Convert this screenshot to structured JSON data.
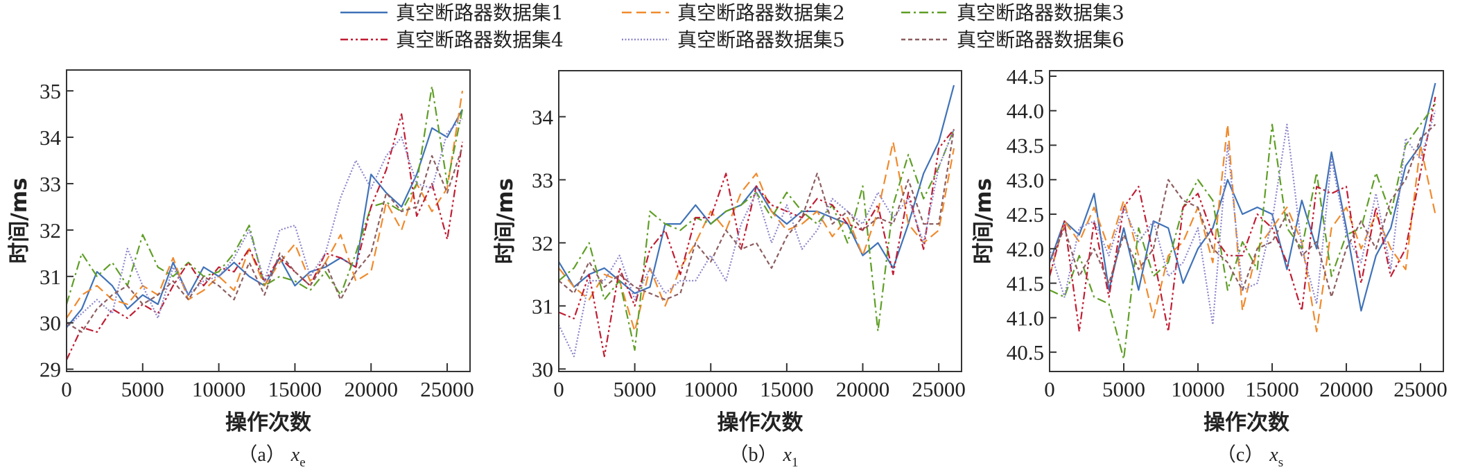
{
  "legend": {
    "placement": "top",
    "entries": [
      "真空断路器数据集1",
      "真空断路器数据集2",
      "真空断路器数据集3",
      "真空断路器数据集4",
      "真空断路器数据集5",
      "真空断路器数据集6"
    ],
    "colors": [
      "#3f72b8",
      "#f08a2c",
      "#5f9e26",
      "#c01d33",
      "#8b84c8",
      "#8c5e60"
    ],
    "line_styles": [
      "solid",
      "dashed",
      "dash-dot",
      "dash-dot-dot",
      "dotted",
      "short-dashed"
    ]
  },
  "chart_data": [
    {
      "type": "line",
      "caption": {
        "label": "（a）",
        "var": "x",
        "sub": "e"
      },
      "xlabel": "操作次数",
      "ylabel": "时间/ms",
      "xlim": [
        0,
        26500
      ],
      "ylim": [
        28.95,
        35.45
      ],
      "xticks": [
        0,
        5000,
        10000,
        15000,
        20000,
        25000
      ],
      "yticks": [
        29,
        30,
        31,
        32,
        33,
        34,
        35
      ],
      "ytick_labels": [
        "29",
        "30",
        "31",
        "32",
        "33",
        "34",
        "35"
      ],
      "grid": false,
      "x": [
        0,
        1000,
        2000,
        3000,
        4000,
        5000,
        6000,
        7000,
        8000,
        9000,
        10000,
        11000,
        12000,
        13000,
        14000,
        15000,
        16000,
        17000,
        18000,
        19000,
        20000,
        21000,
        22000,
        23000,
        24000,
        25000,
        26000
      ],
      "series": [
        {
          "name": "真空断路器数据集1",
          "values": [
            29.9,
            30.3,
            31.1,
            30.8,
            30.3,
            30.6,
            30.4,
            31.3,
            30.6,
            31.2,
            31.0,
            31.3,
            31.0,
            30.8,
            31.4,
            30.8,
            31.1,
            31.2,
            31.4,
            31.2,
            33.2,
            32.8,
            32.5,
            33.2,
            34.2,
            34.0,
            34.6
          ]
        },
        {
          "name": "真空断路器数据集2",
          "values": [
            30.1,
            30.6,
            30.8,
            30.5,
            30.4,
            30.8,
            30.6,
            31.4,
            30.5,
            30.7,
            31.0,
            30.7,
            31.6,
            30.8,
            31.3,
            31.7,
            30.9,
            31.3,
            31.9,
            30.9,
            31.1,
            32.6,
            32.0,
            33.0,
            32.4,
            32.9,
            35.0
          ]
        },
        {
          "name": "真空断路器数据集3",
          "values": [
            30.4,
            31.5,
            31.0,
            31.3,
            30.8,
            31.9,
            31.2,
            31.0,
            31.3,
            31.0,
            31.1,
            31.5,
            32.1,
            30.8,
            31.0,
            30.9,
            30.7,
            31.1,
            30.6,
            31.5,
            32.5,
            32.6,
            32.4,
            33.0,
            35.1,
            33.0,
            34.6
          ]
        },
        {
          "name": "真空断路器数据集4",
          "values": [
            29.2,
            29.9,
            29.8,
            30.3,
            30.1,
            30.4,
            30.2,
            30.8,
            31.3,
            30.8,
            31.2,
            31.1,
            31.6,
            30.9,
            31.4,
            31.1,
            30.8,
            31.5,
            31.4,
            31.2,
            32.5,
            33.3,
            34.5,
            32.3,
            33.0,
            31.8,
            33.9
          ]
        },
        {
          "name": "真空断路器数据集5",
          "values": [
            29.9,
            30.2,
            30.5,
            30.2,
            31.6,
            30.8,
            30.1,
            31.2,
            30.6,
            30.9,
            31.0,
            31.4,
            32.0,
            30.9,
            32.0,
            32.1,
            31.0,
            31.5,
            32.7,
            33.5,
            32.9,
            33.6,
            34.0,
            33.0,
            32.9,
            34.1,
            34.4
          ]
        },
        {
          "name": "真空断路器数据集6",
          "values": [
            30.0,
            29.8,
            30.3,
            30.6,
            30.8,
            30.4,
            30.6,
            30.9,
            30.5,
            31.0,
            30.8,
            30.5,
            31.3,
            30.6,
            31.5,
            31.1,
            30.8,
            31.3,
            30.5,
            31.1,
            31.5,
            32.8,
            32.4,
            32.5,
            33.6,
            32.8,
            33.8
          ]
        }
      ]
    },
    {
      "type": "line",
      "caption": {
        "label": "（b）",
        "var": "x",
        "sub": "1"
      },
      "xlabel": "操作次数",
      "ylabel": "时间/ms",
      "xlim": [
        0,
        26500
      ],
      "ylim": [
        29.96,
        34.73
      ],
      "xticks": [
        0,
        5000,
        10000,
        15000,
        20000,
        25000
      ],
      "yticks": [
        30,
        31,
        32,
        33,
        34
      ],
      "ytick_labels": [
        "30",
        "31",
        "32",
        "33",
        "34"
      ],
      "grid": false,
      "x": [
        0,
        1000,
        2000,
        3000,
        4000,
        5000,
        6000,
        7000,
        8000,
        9000,
        10000,
        11000,
        12000,
        13000,
        14000,
        15000,
        16000,
        17000,
        18000,
        19000,
        20000,
        21000,
        22000,
        23000,
        24000,
        25000,
        26000
      ],
      "series": [
        {
          "name": "真空断路器数据集1",
          "values": [
            31.7,
            31.3,
            31.5,
            31.6,
            31.4,
            31.2,
            31.3,
            32.3,
            32.3,
            32.6,
            32.3,
            32.5,
            32.6,
            32.9,
            32.5,
            32.3,
            32.5,
            32.5,
            32.4,
            32.3,
            31.8,
            32.0,
            31.6,
            32.3,
            33.1,
            33.6,
            34.5
          ]
        },
        {
          "name": "真空断路器数据集2",
          "values": [
            31.6,
            31.3,
            31.1,
            31.5,
            31.4,
            30.6,
            31.6,
            31.0,
            31.6,
            32.0,
            32.5,
            32.2,
            32.8,
            33.1,
            32.5,
            32.2,
            32.3,
            32.5,
            32.1,
            32.4,
            31.8,
            32.5,
            33.6,
            32.3,
            32.0,
            32.2,
            33.5
          ]
        },
        {
          "name": "真空断路器数据集3",
          "values": [
            31.4,
            31.6,
            32.0,
            31.1,
            31.4,
            30.3,
            32.5,
            32.3,
            32.2,
            32.4,
            32.3,
            32.5,
            32.6,
            32.8,
            32.4,
            32.8,
            32.5,
            32.3,
            32.6,
            32.0,
            32.9,
            30.6,
            32.6,
            33.4,
            32.7,
            33.2,
            33.8
          ]
        },
        {
          "name": "真空断路器数据集4",
          "values": [
            30.9,
            30.8,
            31.5,
            30.2,
            31.6,
            31.0,
            31.9,
            32.2,
            31.5,
            32.4,
            32.4,
            33.1,
            31.9,
            32.9,
            32.6,
            32.5,
            32.4,
            32.7,
            32.6,
            32.3,
            32.2,
            32.6,
            31.5,
            32.8,
            31.9,
            33.5,
            33.8
          ]
        },
        {
          "name": "真空断路器数据集5",
          "values": [
            30.7,
            30.2,
            31.4,
            31.4,
            31.8,
            31.1,
            31.6,
            31.2,
            31.4,
            31.4,
            31.8,
            31.4,
            32.3,
            32.8,
            32.0,
            32.6,
            31.9,
            32.2,
            32.7,
            32.5,
            32.3,
            32.8,
            32.4,
            32.7,
            32.0,
            33.2,
            33.8
          ]
        },
        {
          "name": "真空断路器数据集6",
          "values": [
            31.4,
            31.2,
            31.7,
            31.3,
            31.5,
            31.3,
            31.2,
            31.1,
            31.2,
            32.0,
            31.7,
            32.2,
            31.9,
            32.0,
            31.6,
            32.1,
            32.4,
            33.1,
            32.3,
            32.5,
            32.2,
            32.4,
            32.3,
            33.0,
            32.3,
            32.3,
            33.8
          ]
        }
      ]
    },
    {
      "type": "line",
      "caption": {
        "label": "（c）",
        "var": "x",
        "sub": "s"
      },
      "xlabel": "操作次数",
      "ylabel": "时间/ms",
      "xlim": [
        0,
        26540
      ],
      "ylim": [
        40.22,
        44.58
      ],
      "xticks": [
        0,
        5000,
        10000,
        15000,
        20000,
        25000
      ],
      "yticks": [
        40.5,
        41.0,
        41.5,
        42.0,
        42.5,
        43.0,
        43.5,
        44.0,
        44.5
      ],
      "ytick_labels": [
        "40.5",
        "41.0",
        "41.5",
        "42.0",
        "42.5",
        "43.0",
        "43.5",
        "44.0",
        "44.5"
      ],
      "grid": false,
      "x": [
        0,
        1000,
        2000,
        3000,
        4000,
        5000,
        6000,
        7000,
        8000,
        9000,
        10000,
        11000,
        12000,
        13000,
        14000,
        15000,
        16000,
        17000,
        18000,
        19000,
        20000,
        21000,
        22000,
        23000,
        24000,
        25000,
        26000
      ],
      "series": [
        {
          "name": "真空断路器数据集1",
          "values": [
            41.8,
            42.4,
            42.2,
            42.8,
            41.4,
            42.3,
            41.4,
            42.4,
            42.3,
            41.5,
            42.0,
            42.3,
            43.0,
            42.5,
            42.6,
            42.5,
            41.7,
            42.7,
            42.0,
            43.4,
            42.3,
            41.1,
            41.9,
            42.3,
            43.2,
            43.5,
            44.4
          ]
        },
        {
          "name": "真空断路器数据集2",
          "values": [
            41.6,
            42.4,
            42.1,
            42.6,
            42.0,
            42.7,
            41.9,
            41.0,
            41.9,
            42.1,
            42.6,
            41.8,
            43.8,
            41.1,
            42.0,
            42.3,
            42.6,
            42.1,
            40.8,
            42.3,
            42.6,
            42.0,
            42.5,
            42.0,
            41.7,
            43.5,
            42.5
          ]
        },
        {
          "name": "真空断路器数据集3",
          "values": [
            41.4,
            41.3,
            41.9,
            41.3,
            41.2,
            40.4,
            42.3,
            41.6,
            41.8,
            42.6,
            43.0,
            42.7,
            41.4,
            42.1,
            41.7,
            43.8,
            42.3,
            42.0,
            43.1,
            41.6,
            42.2,
            42.3,
            43.1,
            42.5,
            43.5,
            43.8,
            44.1
          ]
        },
        {
          "name": "真空断路器数据集4",
          "values": [
            41.6,
            42.4,
            40.8,
            42.4,
            41.3,
            42.6,
            42.9,
            41.9,
            40.8,
            42.6,
            42.8,
            42.2,
            41.9,
            41.9,
            42.5,
            42.3,
            41.8,
            41.1,
            42.9,
            42.8,
            42.9,
            41.5,
            42.6,
            41.6,
            42.0,
            43.1,
            44.2
          ]
        },
        {
          "name": "真空断路器数据集5",
          "values": [
            42.0,
            41.3,
            42.3,
            42.4,
            41.9,
            42.6,
            42.1,
            42.4,
            41.6,
            41.8,
            42.3,
            40.9,
            43.5,
            41.4,
            41.5,
            42.4,
            43.8,
            42.0,
            41.2,
            43.3,
            42.2,
            41.8,
            42.8,
            41.7,
            43.6,
            43.3,
            44.0
          ]
        },
        {
          "name": "真空断路器数据集6",
          "values": [
            41.8,
            42.3,
            41.6,
            42.0,
            41.5,
            42.2,
            41.7,
            42.0,
            43.0,
            42.7,
            42.6,
            42.0,
            41.8,
            41.4,
            42.0,
            42.1,
            42.5,
            41.9,
            42.1,
            41.3,
            42.0,
            42.4,
            42.0,
            42.7,
            43.0,
            43.6,
            43.8
          ]
        }
      ]
    }
  ]
}
